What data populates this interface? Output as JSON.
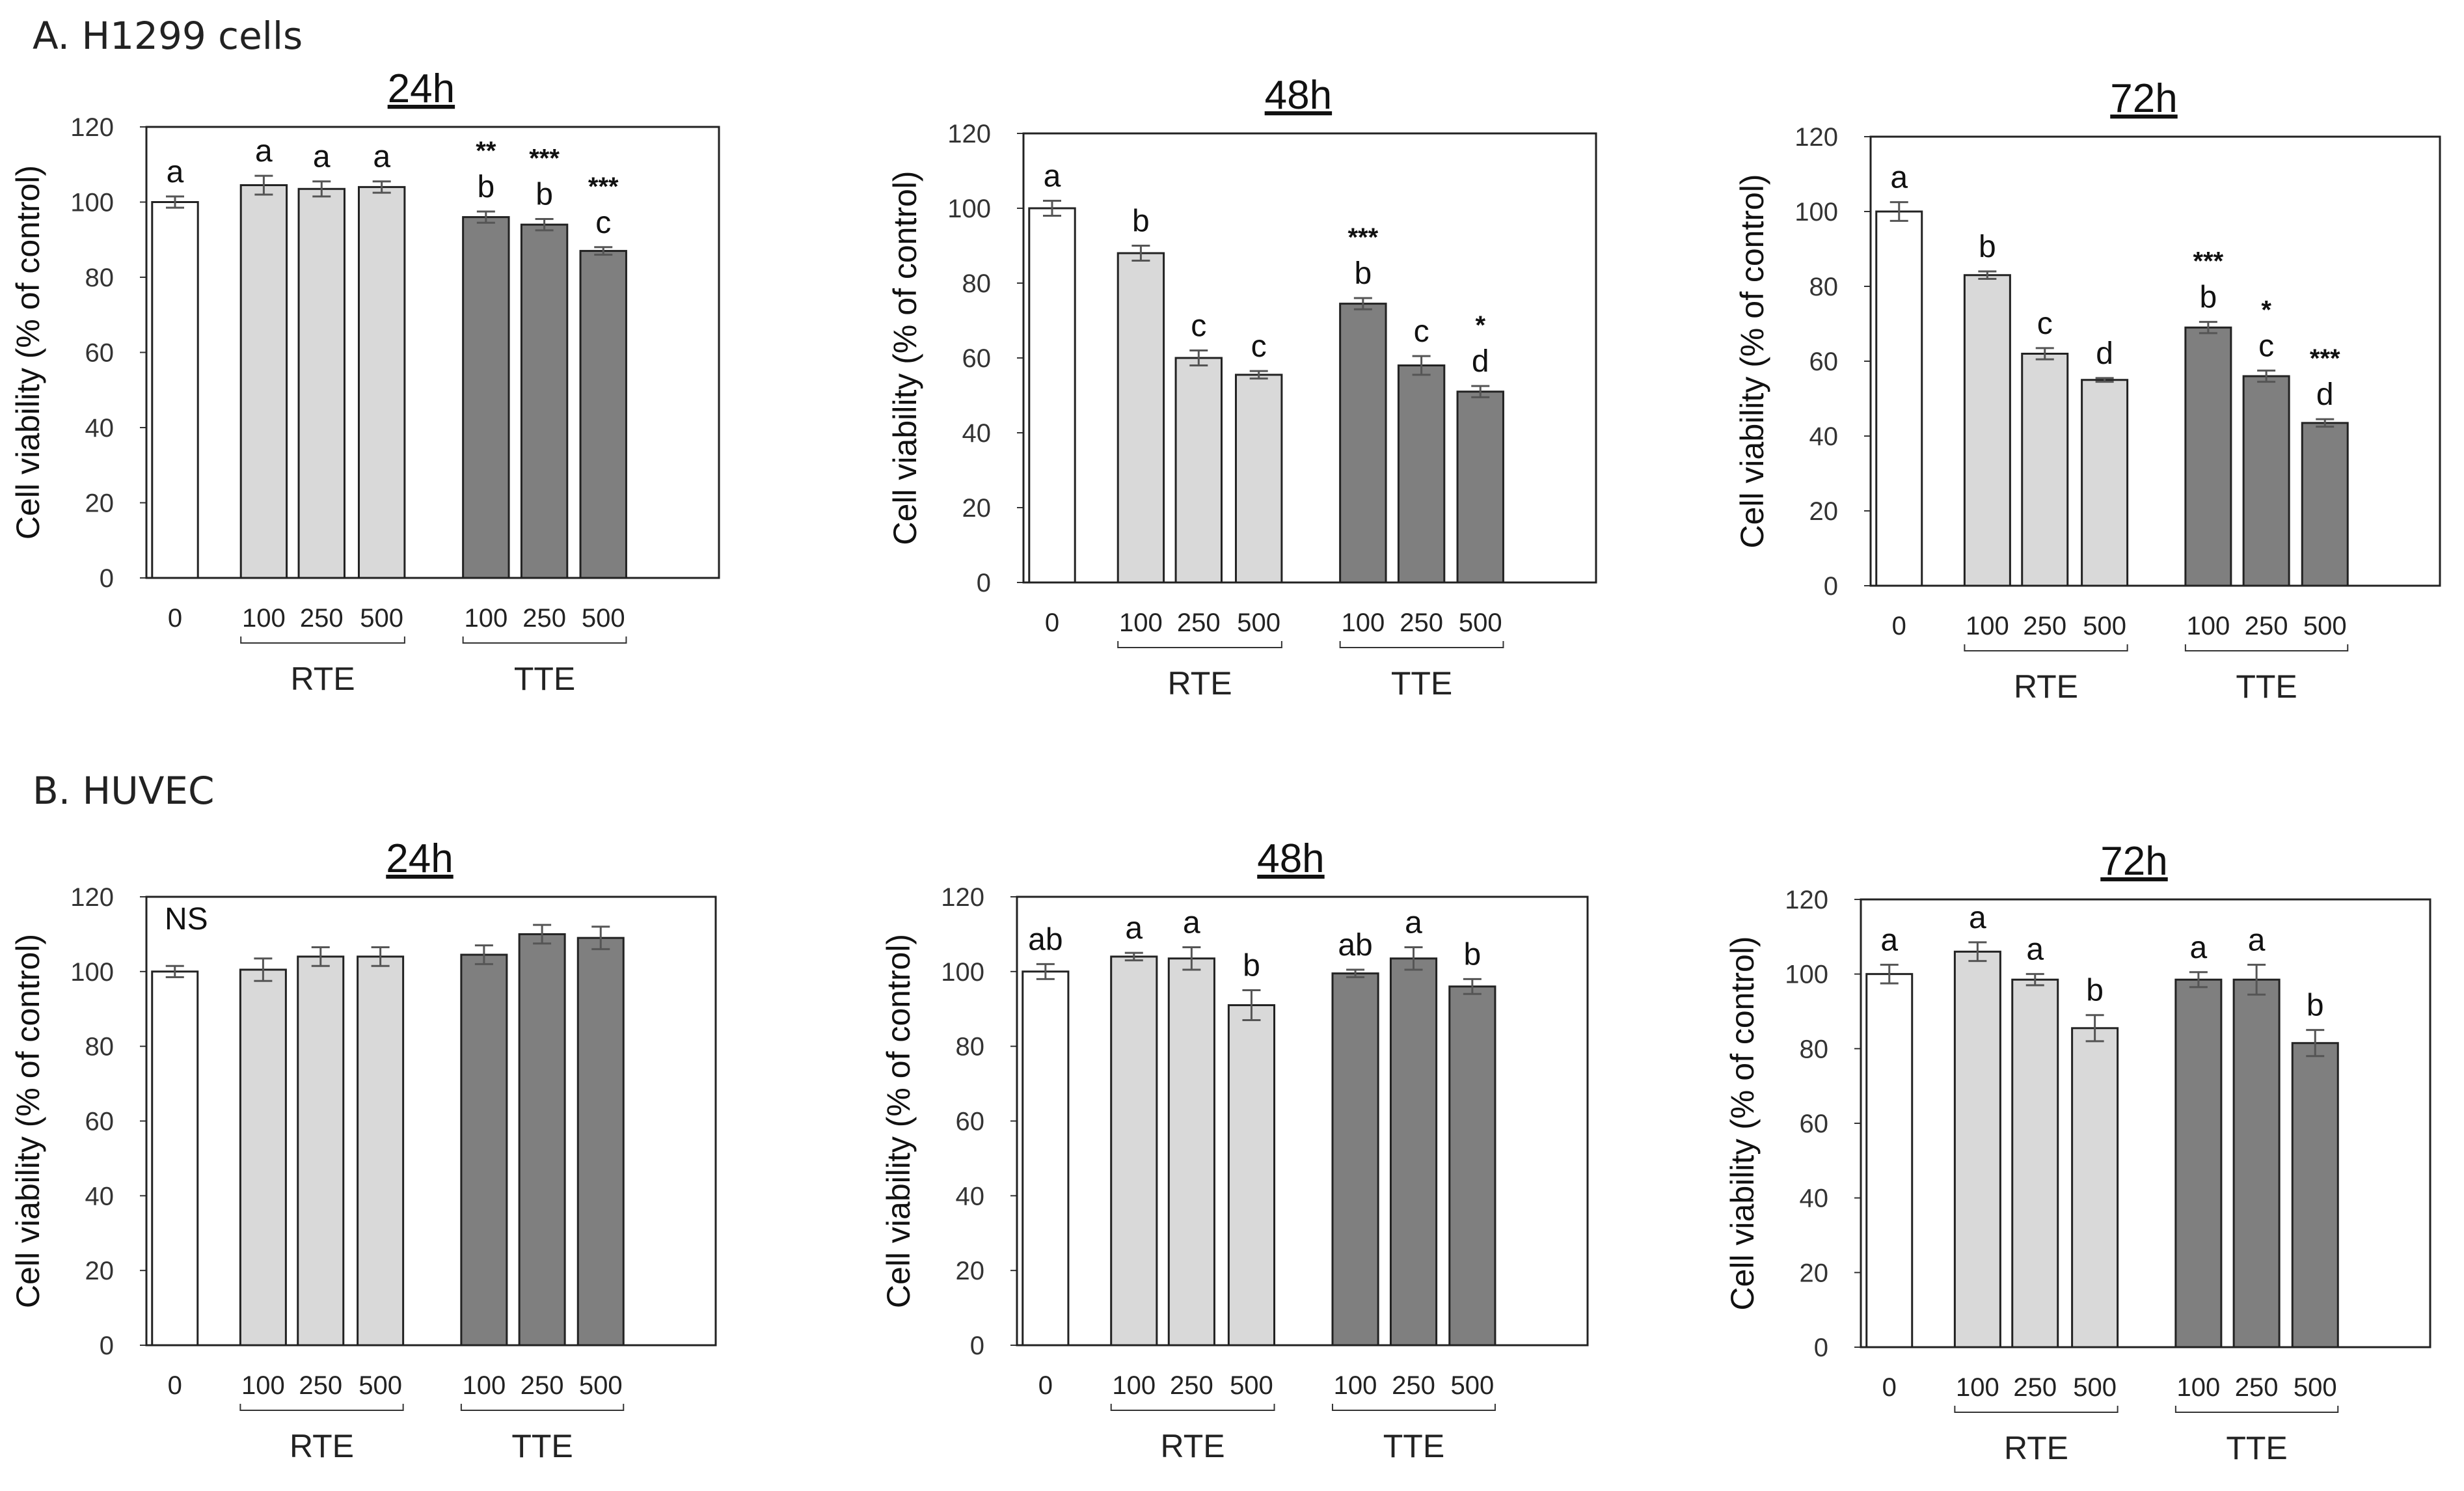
{
  "colors": {
    "control": "#ffffff",
    "RTE": "#d9d9d9",
    "TTE": "#7f7f7f",
    "stroke": "#222222",
    "error": "#555555"
  },
  "ylabel": "Cell viability (% of control)",
  "yticks": [
    0,
    20,
    40,
    60,
    80,
    100,
    120
  ],
  "groups": {
    "rte": "RTE",
    "tte": "TTE"
  },
  "sections": [
    {
      "label": "A. H1299 cells"
    },
    {
      "label": "B. HUVEC"
    }
  ],
  "chart_data": [
    {
      "type": "bar",
      "section": "A. H1299 cells",
      "title": "24h",
      "ylabel": "Cell viability (% of control)",
      "ylim": [
        0,
        120
      ],
      "categories": [
        "0",
        "100",
        "250",
        "500",
        "100",
        "250",
        "500"
      ],
      "series": [
        {
          "name": "Cell viability",
          "values": [
            100,
            104.5,
            103.5,
            104,
            96,
            94,
            87
          ]
        }
      ],
      "errors": [
        1.5,
        2.5,
        2,
        1.5,
        1.5,
        1.5,
        1
      ],
      "letters": [
        "a",
        "a",
        "a",
        "a",
        "b",
        "b",
        "c"
      ],
      "stars": [
        "",
        "",
        "",
        "",
        "**",
        "***",
        "***"
      ],
      "note": ""
    },
    {
      "type": "bar",
      "section": "A. H1299 cells",
      "title": "48h",
      "ylabel": "Cell viability (% of control)",
      "ylim": [
        0,
        120
      ],
      "categories": [
        "0",
        "100",
        "250",
        "500",
        "100",
        "250",
        "500"
      ],
      "series": [
        {
          "name": "Cell viability",
          "values": [
            100,
            88,
            60,
            55.5,
            74.5,
            58,
            51
          ]
        }
      ],
      "errors": [
        2,
        2,
        2,
        1,
        1.5,
        2.5,
        1.5
      ],
      "letters": [
        "a",
        "b",
        "c",
        "c",
        "b",
        "c",
        "d"
      ],
      "stars": [
        "",
        "",
        "",
        "",
        "***",
        "",
        "*"
      ],
      "note": ""
    },
    {
      "type": "bar",
      "section": "A. H1299 cells",
      "title": "72h",
      "ylabel": "Cell viability (% of control)",
      "ylim": [
        0,
        120
      ],
      "categories": [
        "0",
        "100",
        "250",
        "500",
        "100",
        "250",
        "500"
      ],
      "series": [
        {
          "name": "Cell viability",
          "values": [
            100,
            83,
            62,
            55,
            69,
            56,
            43.5
          ]
        }
      ],
      "errors": [
        2.5,
        1,
        1.5,
        0.5,
        1.5,
        1.5,
        1
      ],
      "letters": [
        "a",
        "b",
        "c",
        "d",
        "b",
        "c",
        "d"
      ],
      "stars": [
        "",
        "",
        "",
        "",
        "***",
        "*",
        "***"
      ],
      "note": ""
    },
    {
      "type": "bar",
      "section": "B. HUVEC",
      "title": "24h",
      "ylabel": "Cell viability (% of control)",
      "ylim": [
        0,
        120
      ],
      "categories": [
        "0",
        "100",
        "250",
        "500",
        "100",
        "250",
        "500"
      ],
      "series": [
        {
          "name": "Cell viability",
          "values": [
            100,
            100.5,
            104,
            104,
            104.5,
            110,
            109
          ]
        }
      ],
      "errors": [
        1.5,
        3,
        2.5,
        2.5,
        2.5,
        2.5,
        3
      ],
      "letters": [
        "",
        "",
        "",
        "",
        "",
        "",
        ""
      ],
      "stars": [
        "",
        "",
        "",
        "",
        "",
        "",
        ""
      ],
      "note": "NS"
    },
    {
      "type": "bar",
      "section": "B. HUVEC",
      "title": "48h",
      "ylabel": "Cell viability (% of control)",
      "ylim": [
        0,
        120
      ],
      "categories": [
        "0",
        "100",
        "250",
        "500",
        "100",
        "250",
        "500"
      ],
      "series": [
        {
          "name": "Cell viability",
          "values": [
            100,
            104,
            103.5,
            91,
            99.5,
            103.5,
            96
          ]
        }
      ],
      "errors": [
        2,
        1,
        3,
        4,
        1,
        3,
        2
      ],
      "letters": [
        "ab",
        "a",
        "a",
        "b",
        "ab",
        "a",
        "b"
      ],
      "stars": [
        "",
        "",
        "",
        "",
        "",
        "",
        ""
      ],
      "note": ""
    },
    {
      "type": "bar",
      "section": "B. HUVEC",
      "title": "72h",
      "ylabel": "Cell viability (% of control)",
      "ylim": [
        0,
        120
      ],
      "categories": [
        "0",
        "100",
        "250",
        "500",
        "100",
        "250",
        "500"
      ],
      "series": [
        {
          "name": "Cell viability",
          "values": [
            100,
            106,
            98.5,
            85.5,
            98.5,
            98.5,
            81.5
          ]
        }
      ],
      "errors": [
        2.5,
        2.5,
        1.5,
        3.5,
        2,
        4,
        3.5
      ],
      "letters": [
        "a",
        "a",
        "a",
        "b",
        "a",
        "a",
        "b"
      ],
      "stars": [
        "",
        "",
        "",
        "",
        "",
        "",
        ""
      ],
      "note": ""
    }
  ]
}
